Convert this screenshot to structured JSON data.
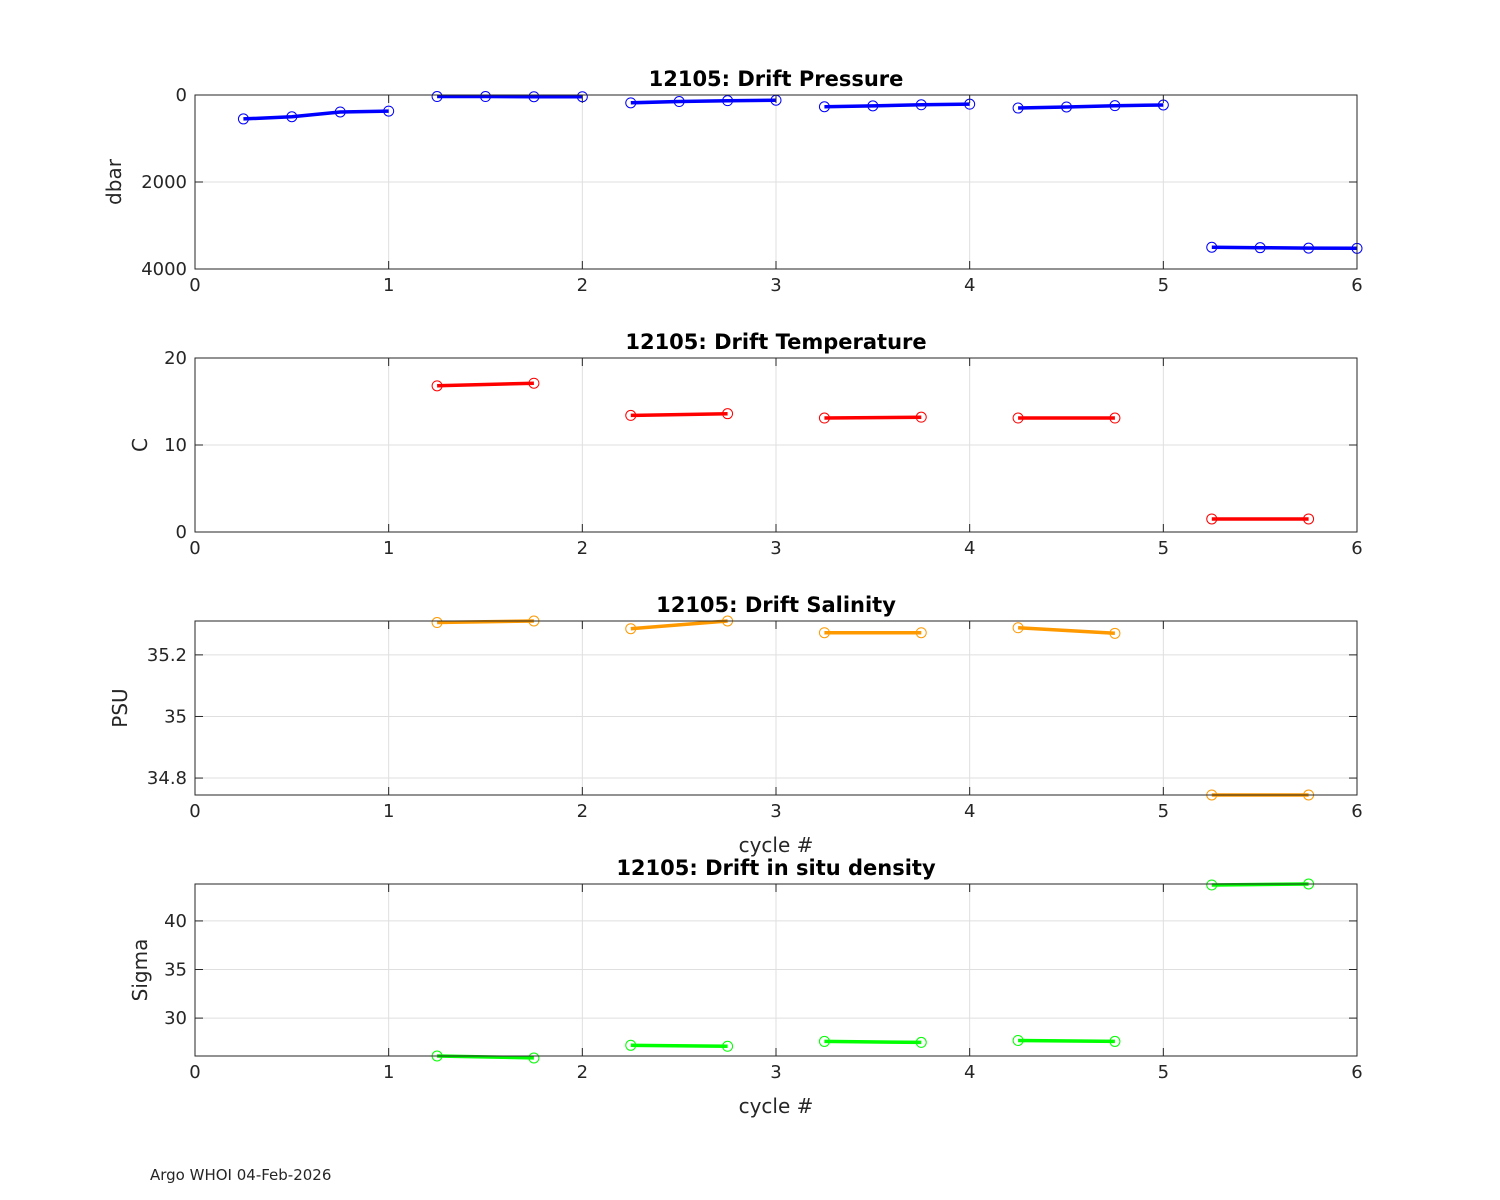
{
  "footer": "Argo WHOI 04-Feb-2026",
  "chart_data": [
    {
      "type": "line",
      "title": "12105: Drift Pressure",
      "xlabel": "",
      "ylabel": "dbar",
      "color": "#0000ff",
      "xlim": [
        0,
        6
      ],
      "ylim": [
        0,
        4000
      ],
      "y_reversed": true,
      "xticks": [
        0,
        1,
        2,
        3,
        4,
        5,
        6
      ],
      "yticks": [
        0,
        2000,
        4000
      ],
      "grid": true,
      "segments": [
        {
          "x": [
            0.25,
            0.5,
            0.75,
            1.0
          ],
          "y": [
            550,
            500,
            390,
            370
          ]
        },
        {
          "x": [
            1.25,
            1.5,
            1.75,
            2.0
          ],
          "y": [
            35,
            35,
            40,
            40
          ]
        },
        {
          "x": [
            2.25,
            2.5,
            2.75,
            3.0
          ],
          "y": [
            180,
            150,
            130,
            120
          ]
        },
        {
          "x": [
            3.25,
            3.5,
            3.75,
            4.0
          ],
          "y": [
            270,
            250,
            225,
            210
          ]
        },
        {
          "x": [
            4.25,
            4.5,
            4.75,
            5.0
          ],
          "y": [
            300,
            275,
            245,
            230
          ]
        },
        {
          "x": [
            5.25,
            5.5,
            5.75,
            6.0
          ],
          "y": [
            3500,
            3510,
            3520,
            3525
          ]
        }
      ]
    },
    {
      "type": "line",
      "title": "12105: Drift Temperature",
      "xlabel": "",
      "ylabel": "C",
      "color": "#ff0000",
      "xlim": [
        0,
        6
      ],
      "ylim": [
        0,
        20
      ],
      "y_reversed": false,
      "xticks": [
        0,
        1,
        2,
        3,
        4,
        5,
        6
      ],
      "yticks": [
        0,
        10,
        20
      ],
      "grid": true,
      "segments": [
        {
          "x": [
            1.25,
            1.75
          ],
          "y": [
            16.8,
            17.1
          ]
        },
        {
          "x": [
            2.25,
            2.75
          ],
          "y": [
            13.4,
            13.6
          ]
        },
        {
          "x": [
            3.25,
            3.75
          ],
          "y": [
            13.1,
            13.2
          ]
        },
        {
          "x": [
            4.25,
            4.75
          ],
          "y": [
            13.1,
            13.1
          ]
        },
        {
          "x": [
            5.25,
            5.75
          ],
          "y": [
            1.5,
            1.5
          ]
        }
      ]
    },
    {
      "type": "line",
      "title": "12105: Drift Salinity",
      "xlabel": "cycle #",
      "ylabel": "PSU",
      "color": "#ff9900",
      "xlim": [
        0,
        6
      ],
      "ylim": [
        34.745,
        35.31
      ],
      "y_reversed": false,
      "xticks": [
        0,
        1,
        2,
        3,
        4,
        5,
        6
      ],
      "yticks": [
        34.8,
        35,
        35.2
      ],
      "grid": true,
      "segments": [
        {
          "x": [
            1.25,
            1.75
          ],
          "y": [
            35.305,
            35.31
          ]
        },
        {
          "x": [
            2.25,
            2.75
          ],
          "y": [
            35.285,
            35.31
          ]
        },
        {
          "x": [
            3.25,
            3.75
          ],
          "y": [
            35.272,
            35.272
          ]
        },
        {
          "x": [
            4.25,
            4.75
          ],
          "y": [
            35.288,
            35.27
          ]
        },
        {
          "x": [
            5.25,
            5.75
          ],
          "y": [
            34.745,
            34.745
          ]
        }
      ]
    },
    {
      "type": "line",
      "title": "12105: Drift in situ density",
      "xlabel": "cycle #",
      "ylabel": "Sigma",
      "color": "#00ff00",
      "xlim": [
        0,
        6
      ],
      "ylim": [
        26.1,
        43.8
      ],
      "y_reversed": false,
      "xticks": [
        0,
        1,
        2,
        3,
        4,
        5,
        6
      ],
      "yticks": [
        30,
        35,
        40
      ],
      "grid": true,
      "segments": [
        {
          "x": [
            1.25,
            1.75
          ],
          "y": [
            26.1,
            25.9
          ]
        },
        {
          "x": [
            2.25,
            2.75
          ],
          "y": [
            27.2,
            27.1
          ]
        },
        {
          "x": [
            3.25,
            3.75
          ],
          "y": [
            27.6,
            27.5
          ]
        },
        {
          "x": [
            4.25,
            4.75
          ],
          "y": [
            27.7,
            27.6
          ]
        },
        {
          "x": [
            5.25,
            5.75
          ],
          "y": [
            43.7,
            43.8
          ]
        }
      ]
    }
  ]
}
